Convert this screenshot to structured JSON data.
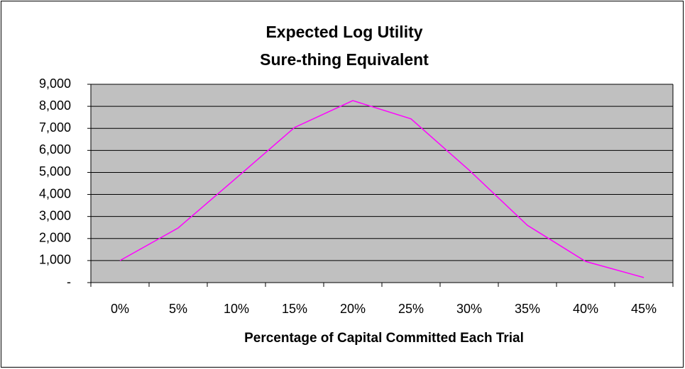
{
  "chart_data": {
    "type": "line",
    "title": "Expected Log Utility",
    "subtitle": "Sure-thing Equivalent",
    "x_label": "Percentage of Capital Committed Each Trial",
    "categories": [
      "0%",
      "5%",
      "10%",
      "15%",
      "20%",
      "25%",
      "30%",
      "35%",
      "40%",
      "45%"
    ],
    "series": [
      {
        "color": "#ff00ff",
        "values": [
          1000,
          2480,
          4750,
          7040,
          8260,
          7430,
          5100,
          2600,
          960,
          230
        ]
      }
    ],
    "ylim": [
      0,
      9000
    ],
    "yticks": [
      {
        "value": 0,
        "label": "-"
      },
      {
        "value": 1000,
        "label": "1,000"
      },
      {
        "value": 2000,
        "label": "2,000"
      },
      {
        "value": 3000,
        "label": "3,000"
      },
      {
        "value": 4000,
        "label": "4,000"
      },
      {
        "value": 5000,
        "label": "5,000"
      },
      {
        "value": 6000,
        "label": "6,000"
      },
      {
        "value": 7000,
        "label": "7,000"
      },
      {
        "value": 8000,
        "label": "8,000"
      },
      {
        "value": 9000,
        "label": "9,000"
      }
    ],
    "grid": true,
    "plot_background": "#c0c0c0"
  }
}
